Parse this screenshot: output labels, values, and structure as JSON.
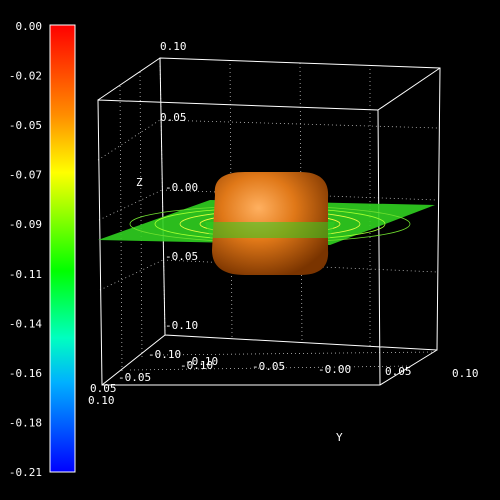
{
  "colorbar": {
    "labels": [
      "0.00",
      "-0.02",
      "-0.05",
      "-0.07",
      "-0.09",
      "-0.11",
      "-0.14",
      "-0.16",
      "-0.18",
      "-0.21"
    ]
  },
  "z_axis": {
    "label": "Z",
    "ticks": [
      "0.10",
      "0.05",
      "-0.00",
      "-0.05",
      "-0.10"
    ]
  },
  "y_axis": {
    "label": "Y",
    "ticks": [
      "-0.10",
      "-0.05",
      "-0.00",
      "0.05",
      "0.10"
    ]
  },
  "x_axis": {
    "ticks": [
      "0.10",
      "0.05",
      "-0.05",
      "-0.10",
      "-0.10"
    ]
  }
}
